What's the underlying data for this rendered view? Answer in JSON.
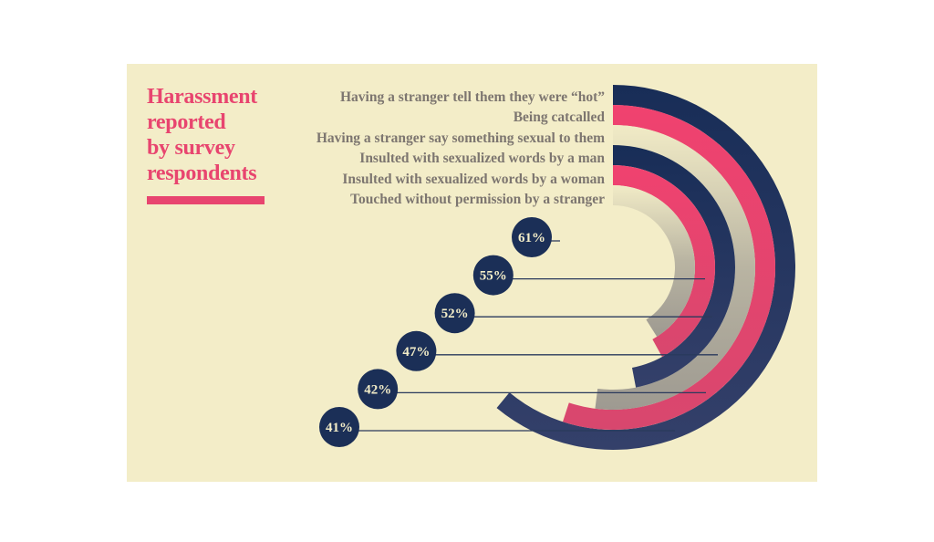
{
  "chart_data": {
    "type": "radial-bar",
    "title": "Harassment reported by survey respondents",
    "title_lines": [
      "Harassment",
      "reported",
      "by survey",
      "respondents"
    ],
    "categories": [
      "Having a stranger tell them they were “hot”",
      "Being catcalled",
      "Having a stranger say something sexual to them",
      "Insulted with sexualized words by a man",
      "Insulted with sexualized words by a woman",
      "Touched without permission by a stranger"
    ],
    "values": [
      61,
      55,
      52,
      47,
      42,
      41
    ],
    "value_labels": [
      "61%",
      "55%",
      "52%",
      "47%",
      "42%",
      "41%"
    ],
    "unit": "%",
    "colors": [
      "#1b2f57",
      "#e8426f",
      "#c9c4ae",
      "#1b2f57",
      "#e8426f",
      "#c9c4ae"
    ],
    "label_bubble_color": "#1b2f57",
    "background": "#f3edc8",
    "accent": "#e8456f"
  }
}
